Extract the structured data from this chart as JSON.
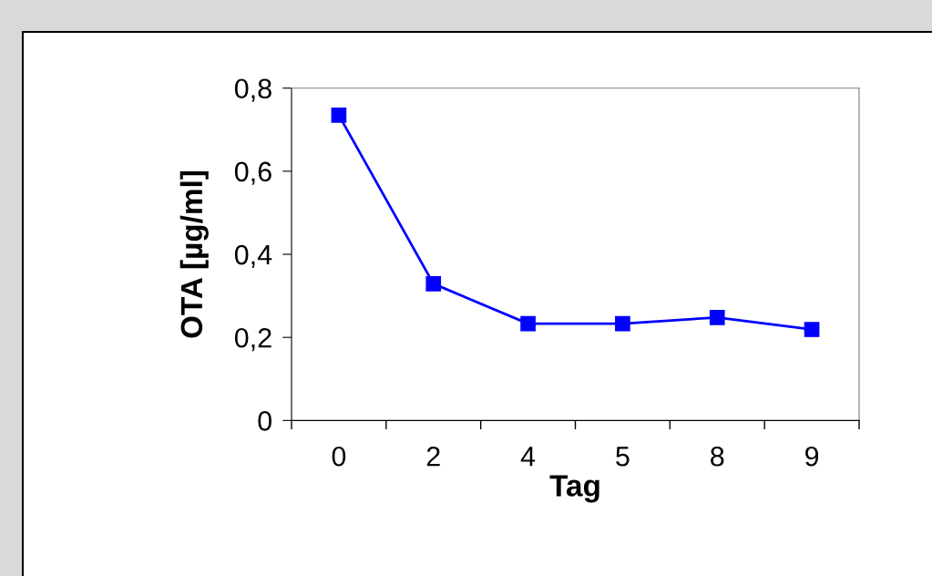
{
  "chart_data": {
    "type": "line",
    "xlabel": "Tag",
    "ylabel": "OTA [µg/ml]",
    "categories": [
      "0",
      "2",
      "4",
      "5",
      "8",
      "9"
    ],
    "series": [
      {
        "color": "#0000ff",
        "values": [
          0.735,
          0.329,
          0.233,
          0.233,
          0.248,
          0.219
        ]
      }
    ],
    "ylim": [
      0,
      0.8
    ],
    "yticks": [
      0,
      {
        "value": 0.2,
        "label": "0,2"
      },
      {
        "value": 0.4,
        "label": "0,4"
      },
      {
        "value": 0.6,
        "label": "0,6"
      },
      {
        "value": 0.8,
        "label": "0,8"
      }
    ],
    "marker": "square",
    "line_style": "solid",
    "grid": false,
    "legend": false
  }
}
